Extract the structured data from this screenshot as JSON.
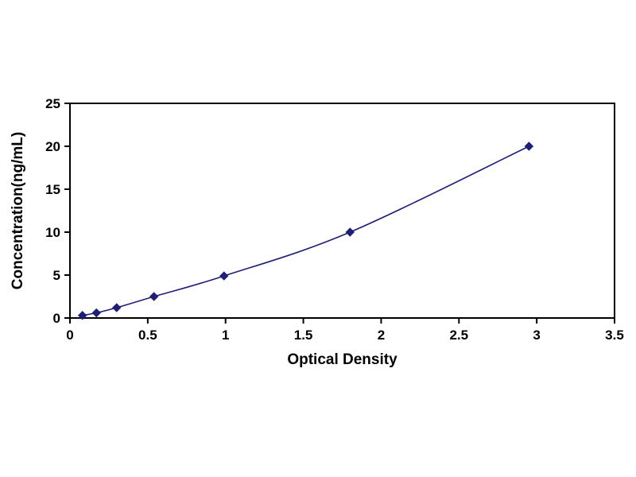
{
  "chart_data": {
    "type": "line",
    "title": "",
    "xlabel": "Optical Density",
    "ylabel": "Concentration(ng/mL)",
    "x": [
      0.08,
      0.17,
      0.3,
      0.54,
      0.99,
      1.8,
      2.95
    ],
    "y": [
      0.3,
      0.6,
      1.2,
      2.5,
      4.9,
      10,
      20
    ],
    "xlim": [
      0,
      3.5
    ],
    "ylim": [
      0,
      25
    ],
    "xticks": [
      0,
      0.5,
      1,
      1.5,
      2,
      2.5,
      3,
      3.5
    ],
    "yticks": [
      0,
      5,
      10,
      15,
      20,
      25
    ],
    "grid": false,
    "legend": null,
    "line_color": "#1f1f78",
    "marker": "diamond",
    "marker_color": "#1f1f78",
    "axis_color": "#000000",
    "background_color": "#ffffff"
  }
}
